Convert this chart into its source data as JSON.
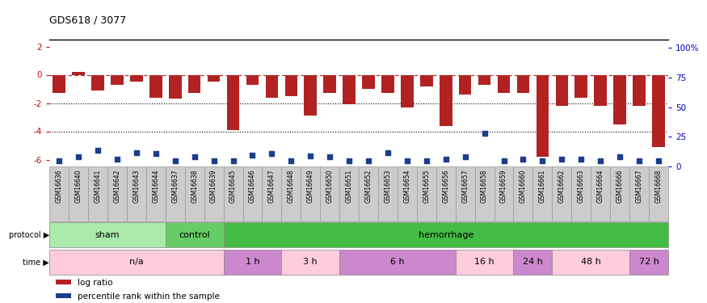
{
  "title": "GDS618 / 3077",
  "samples": [
    "GSM16636",
    "GSM16640",
    "GSM16641",
    "GSM16642",
    "GSM16643",
    "GSM16644",
    "GSM16637",
    "GSM16638",
    "GSM16639",
    "GSM16645",
    "GSM16646",
    "GSM16647",
    "GSM16648",
    "GSM16649",
    "GSM16650",
    "GSM16651",
    "GSM16652",
    "GSM16653",
    "GSM16654",
    "GSM16655",
    "GSM16656",
    "GSM16657",
    "GSM16658",
    "GSM16659",
    "GSM16660",
    "GSM16661",
    "GSM16662",
    "GSM16663",
    "GSM16664",
    "GSM16666",
    "GSM16667",
    "GSM16668"
  ],
  "log_ratio": [
    -1.3,
    0.2,
    -1.1,
    -0.7,
    -0.5,
    -1.6,
    -1.7,
    -1.3,
    -0.5,
    -3.9,
    -0.7,
    -1.6,
    -1.5,
    -2.9,
    -1.3,
    -2.1,
    -1.0,
    -1.3,
    -2.3,
    -0.8,
    -3.6,
    -1.4,
    -0.7,
    -1.3,
    -1.3,
    -5.8,
    -2.2,
    -1.6,
    -2.2,
    -3.5,
    -2.2,
    -5.1
  ],
  "percentile": [
    5,
    8,
    14,
    6,
    12,
    11,
    5,
    8,
    5,
    5,
    10,
    11,
    5,
    9,
    8,
    5,
    5,
    12,
    5,
    5,
    6,
    8,
    28,
    5,
    6,
    5,
    6,
    6,
    5,
    8,
    5,
    5
  ],
  "bar_color": "#B22222",
  "dot_color": "#1C3D8C",
  "ylim_left": [
    -6.5,
    2.5
  ],
  "ylim_right": [
    0,
    107
  ],
  "yticks_left": [
    2,
    0,
    -2,
    -4,
    -6
  ],
  "yticks_right": [
    0,
    25,
    50,
    75,
    100
  ],
  "hline_y": 0,
  "dotted_lines": [
    -2,
    -4
  ],
  "protocol_groups": [
    {
      "label": "sham",
      "start": 0,
      "end": 6,
      "color": "#AAEAAA"
    },
    {
      "label": "control",
      "start": 6,
      "end": 9,
      "color": "#66CC66"
    },
    {
      "label": "hemorrhage",
      "start": 9,
      "end": 32,
      "color": "#44BB44"
    }
  ],
  "time_groups": [
    {
      "label": "n/a",
      "start": 0,
      "end": 9,
      "color": "#FFCCDD"
    },
    {
      "label": "1 h",
      "start": 9,
      "end": 12,
      "color": "#CC88CC"
    },
    {
      "label": "3 h",
      "start": 12,
      "end": 15,
      "color": "#FFCCDD"
    },
    {
      "label": "6 h",
      "start": 15,
      "end": 21,
      "color": "#CC88CC"
    },
    {
      "label": "16 h",
      "start": 21,
      "end": 24,
      "color": "#FFCCDD"
    },
    {
      "label": "24 h",
      "start": 24,
      "end": 26,
      "color": "#CC88CC"
    },
    {
      "label": "48 h",
      "start": 26,
      "end": 30,
      "color": "#FFCCDD"
    },
    {
      "label": "72 h",
      "start": 30,
      "end": 32,
      "color": "#CC88CC"
    }
  ],
  "legend_items": [
    {
      "label": "log ratio",
      "color": "#B22222",
      "marker": "s"
    },
    {
      "label": "percentile rank within the sample",
      "color": "#1C3D8C",
      "marker": "s"
    }
  ]
}
